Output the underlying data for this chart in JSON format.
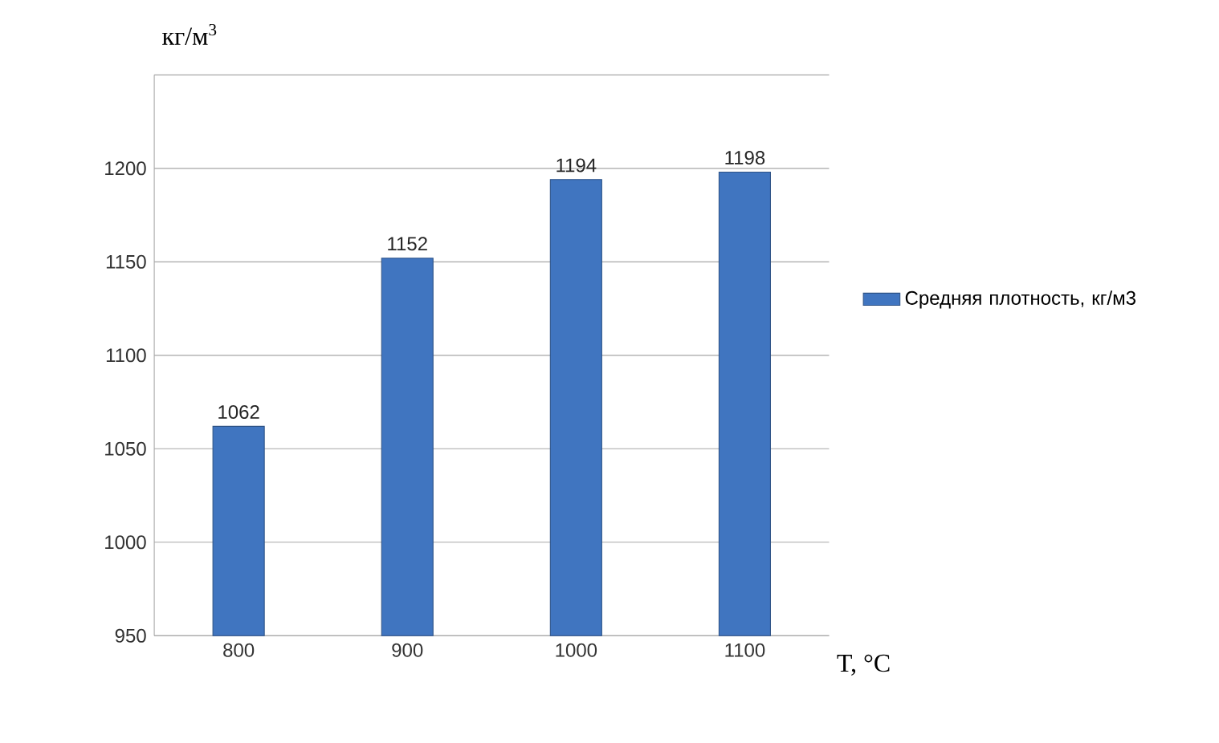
{
  "chart_data": {
    "type": "bar",
    "categories": [
      "800",
      "900",
      "1000",
      "1100"
    ],
    "series": [
      {
        "name": "Средняя плотность, кг/м3",
        "color": "#4075c0",
        "values": [
          1062,
          1152,
          1194,
          1198
        ]
      }
    ],
    "ylabel": "кг/м$^{3}$",
    "xlabel": "T, °C",
    "ylim": [
      950,
      1250
    ],
    "yticks": [
      950,
      1000,
      1050,
      1100,
      1150,
      1200,
      {
        "value": 1250,
        "label": null
      }
    ],
    "grid": "y",
    "legend": "right",
    "data_labels": true
  }
}
